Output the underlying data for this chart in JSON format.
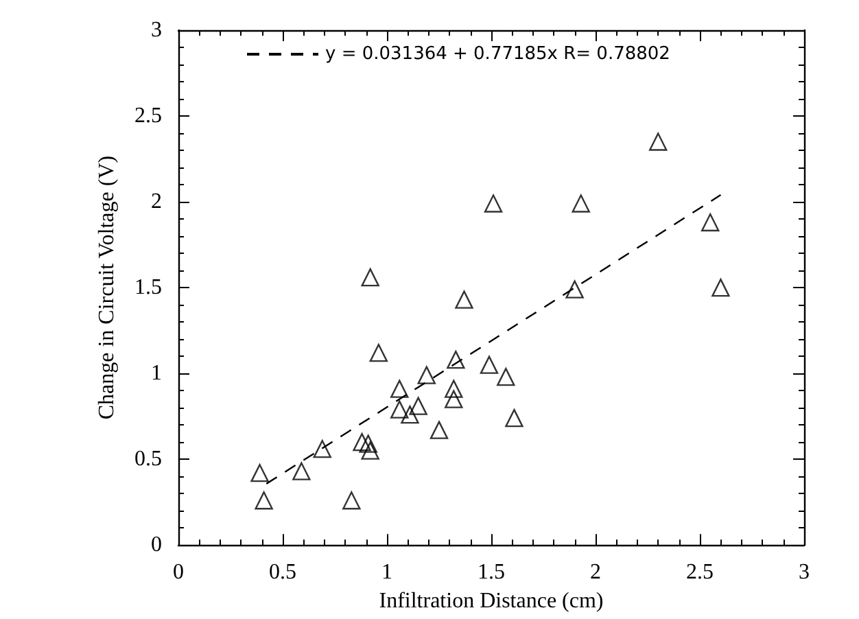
{
  "chart_data": {
    "type": "scatter",
    "xlabel": "Infiltration Distance (cm)",
    "ylabel": "Change in Circuit Voltage (V)",
    "xlim": [
      0,
      3
    ],
    "xticks": [
      0,
      0.5,
      1,
      1.5,
      2,
      2.5,
      3
    ],
    "ylim": [
      0,
      3
    ],
    "yticks": [
      0,
      0.5,
      1,
      1.5,
      2,
      2.5,
      3
    ],
    "grid": false,
    "legend": "top",
    "marker": "triangle",
    "series": [
      {
        "color": "#000000",
        "x": [
          2.3,
          1.51,
          1.93,
          2.55,
          0.92,
          1.37,
          1.9,
          2.6,
          0.96,
          1.33,
          1.49,
          1.19,
          1.57,
          1.06,
          1.32,
          1.32,
          1.15,
          1.06,
          1.11,
          1.61,
          1.25,
          0.88,
          0.91,
          0.92,
          0.69,
          0.39,
          0.59,
          0.41,
          0.83
        ],
        "values": [
          2.35,
          1.99,
          1.99,
          1.88,
          1.56,
          1.43,
          1.49,
          1.5,
          1.12,
          1.08,
          1.05,
          0.99,
          0.98,
          0.91,
          0.91,
          0.85,
          0.81,
          0.79,
          0.76,
          0.74,
          0.67,
          0.6,
          0.59,
          0.55,
          0.56,
          0.42,
          0.43,
          0.26,
          0.26
        ]
      },
      {
        "type": "line",
        "name": "y = 0.031364 + 0.77185x R= 0.78802",
        "color": "#000000",
        "line_style": "dashed",
        "marker": "none",
        "x": [
          0.4,
          2.6
        ],
        "values": [
          0.34,
          2.04
        ]
      }
    ]
  }
}
